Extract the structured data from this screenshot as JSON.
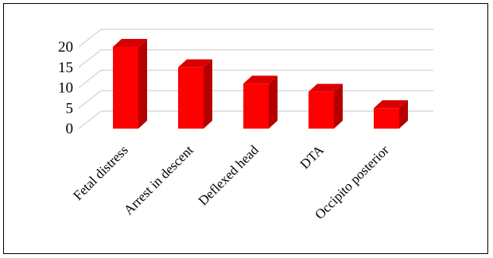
{
  "chart_data": {
    "type": "bar",
    "title": "",
    "xlabel": "",
    "ylabel": "",
    "categories": [
      "Fetal distress",
      "Arrest in descent",
      "Deflexed head",
      "DTA",
      "Occipito posterior"
    ],
    "values": [
      20,
      15,
      11,
      9,
      5
    ],
    "ylim": [
      0,
      20
    ],
    "yticks": [
      "0",
      "5",
      "10",
      "15",
      "20"
    ],
    "grid": true,
    "legend": "none",
    "style": "3d",
    "colors": {
      "front": "#ff0000",
      "side": "#b50000",
      "top": "#d90000",
      "grid": "#d9d9d9"
    }
  }
}
